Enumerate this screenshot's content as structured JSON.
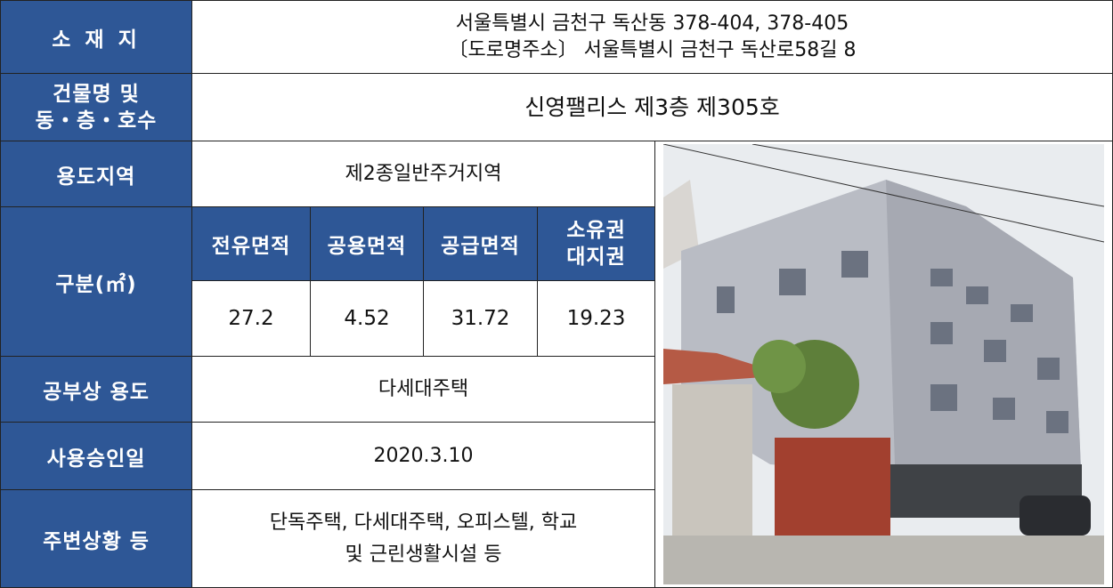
{
  "address": {
    "label": "소 재 지",
    "lines": [
      "서울특별시 금천구 독산동 378-404, 378-405",
      "〔도로명주소〕 서울특별시 금천구 독산로58길 8"
    ]
  },
  "building": {
    "label_lines": [
      "건물명 및",
      "동・층・호수"
    ],
    "value": "신영팰리스 제3층 제305호"
  },
  "zoning": {
    "label": "용도지역",
    "value": "제2종일반주거지역"
  },
  "area": {
    "label": "구분(㎡)",
    "columns": [
      [
        "전유면적"
      ],
      [
        "공용면적"
      ],
      [
        "공급면적"
      ],
      [
        "소유권",
        "대지권"
      ]
    ],
    "values": [
      "27.2",
      "4.52",
      "31.72",
      "19.23"
    ]
  },
  "registered_use": {
    "label": "공부상 용도",
    "value": "다세대주택"
  },
  "approval_date": {
    "label": "사용승인일",
    "value": "2020.3.10"
  },
  "surroundings": {
    "label": "주변상황 등",
    "lines": [
      "단독주택, 다세대주택, 오피스텔, 학교",
      "및 근린생활시설 등"
    ]
  }
}
